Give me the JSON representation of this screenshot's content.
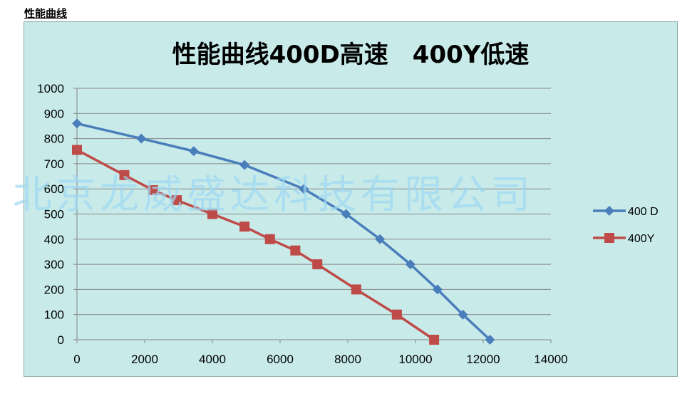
{
  "page": {
    "heading": "性能曲线"
  },
  "watermark": "北京龙威盛达科技有限公司",
  "chart_data": {
    "type": "line",
    "title": "性能曲线400D高速　400Y低速",
    "xlim": [
      0,
      14000
    ],
    "ylim": [
      0,
      1000
    ],
    "x_ticks": [
      0,
      2000,
      4000,
      6000,
      8000,
      10000,
      12000,
      14000
    ],
    "y_ticks": [
      0,
      100,
      200,
      300,
      400,
      500,
      600,
      700,
      800,
      900,
      1000
    ],
    "grid": "horizontal",
    "legend_position": "right",
    "series": [
      {
        "name": "400 D",
        "color": "#4a7ebb",
        "marker": "diamond",
        "x": [
          0,
          1900,
          3450,
          4950,
          6700,
          7950,
          8950,
          9850,
          10650,
          11400,
          12200
        ],
        "y": [
          860,
          800,
          750,
          695,
          600,
          500,
          400,
          300,
          200,
          100,
          0
        ]
      },
      {
        "name": "400Y",
        "color": "#be4b48",
        "marker": "square",
        "x": [
          0,
          1400,
          2250,
          2950,
          4000,
          4950,
          5700,
          6450,
          7100,
          8250,
          9450,
          10550
        ],
        "y": [
          755,
          655,
          595,
          555,
          500,
          450,
          400,
          355,
          300,
          200,
          100,
          0
        ]
      }
    ]
  }
}
